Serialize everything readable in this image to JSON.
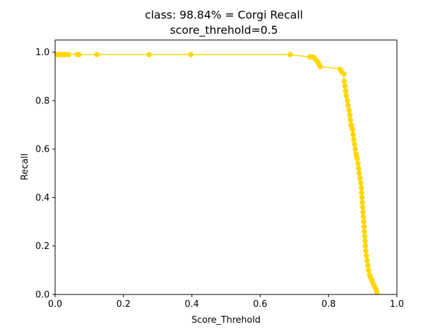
{
  "chart_data": {
    "type": "line",
    "title_line1": "class: 98.84% = Corgi Recall",
    "title_line2": "score_threhold=0.5",
    "xlabel": "Score_Threhold",
    "ylabel": "Recall",
    "xlim": [
      0.0,
      1.0
    ],
    "ylim": [
      0.0,
      1.05
    ],
    "x_ticks": [
      "0.0",
      "0.2",
      "0.4",
      "0.6",
      "0.8",
      "1.0"
    ],
    "y_ticks": [
      "0.0",
      "0.2",
      "0.4",
      "0.6",
      "0.8",
      "1.0"
    ],
    "grid": false,
    "line_color": "#ffd700",
    "marker": "circle",
    "series": [
      {
        "x": [
          0.006,
          0.01,
          0.014,
          0.018,
          0.022,
          0.026,
          0.03,
          0.04,
          0.065,
          0.07,
          0.122,
          0.275,
          0.397,
          0.688,
          0.745,
          0.75,
          0.755,
          0.762,
          0.768,
          0.772,
          0.776,
          0.833,
          0.838,
          0.845,
          0.846,
          0.848,
          0.85,
          0.852,
          0.855,
          0.857,
          0.86,
          0.862,
          0.864,
          0.866,
          0.868,
          0.87,
          0.872,
          0.874,
          0.876,
          0.878,
          0.88,
          0.882,
          0.884,
          0.886,
          0.888,
          0.89,
          0.892,
          0.894,
          0.896,
          0.897,
          0.898,
          0.899,
          0.9,
          0.901,
          0.902,
          0.903,
          0.904,
          0.905,
          0.906,
          0.907,
          0.908,
          0.909,
          0.911,
          0.913,
          0.915,
          0.917,
          0.92,
          0.923,
          0.926,
          0.929,
          0.932,
          0.936,
          0.939,
          0.941
        ],
        "y": [
          0.99,
          0.99,
          0.99,
          0.99,
          0.99,
          0.99,
          0.99,
          0.99,
          0.99,
          0.99,
          0.99,
          0.99,
          0.99,
          0.99,
          0.98,
          0.98,
          0.98,
          0.97,
          0.96,
          0.95,
          0.94,
          0.93,
          0.92,
          0.91,
          0.88,
          0.86,
          0.84,
          0.82,
          0.8,
          0.78,
          0.76,
          0.74,
          0.72,
          0.7,
          0.69,
          0.68,
          0.66,
          0.64,
          0.62,
          0.6,
          0.58,
          0.57,
          0.56,
          0.54,
          0.52,
          0.5,
          0.48,
          0.46,
          0.44,
          0.42,
          0.4,
          0.38,
          0.36,
          0.34,
          0.32,
          0.3,
          0.28,
          0.26,
          0.24,
          0.22,
          0.2,
          0.18,
          0.16,
          0.14,
          0.12,
          0.1,
          0.08,
          0.07,
          0.06,
          0.05,
          0.04,
          0.03,
          0.02,
          0.01
        ]
      }
    ]
  }
}
